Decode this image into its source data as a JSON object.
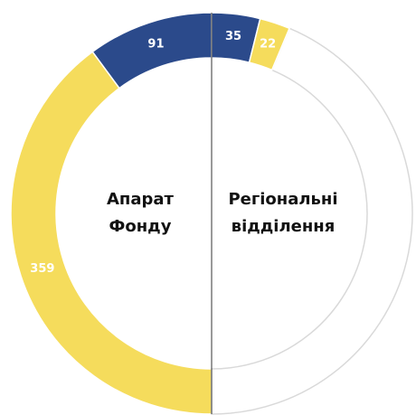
{
  "chart_data": [
    {
      "type": "half-donut",
      "side": "left",
      "title": "Апарат Фонду",
      "values": [
        91,
        359
      ],
      "colors": [
        "#2b4a8b",
        "#f5dc5c"
      ]
    },
    {
      "type": "half-donut",
      "side": "right",
      "title": "Регіональні відділення",
      "values": [
        35,
        22
      ],
      "colors": [
        "#2b4a8b",
        "#f5dc5c"
      ],
      "empty_color": "#d9d9d9"
    }
  ]
}
